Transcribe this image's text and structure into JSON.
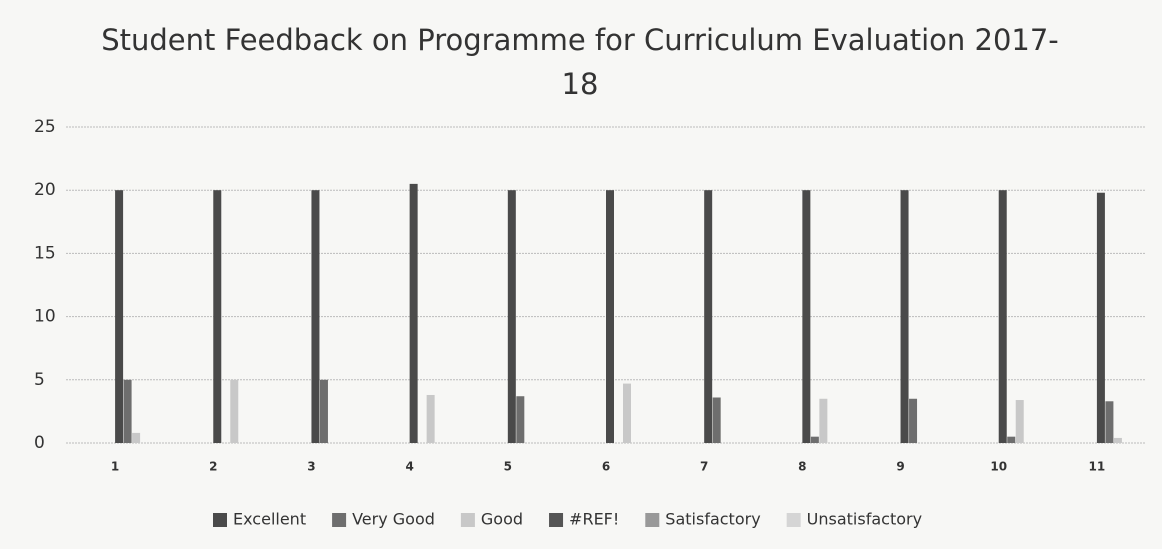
{
  "chart_data": {
    "type": "bar",
    "title": "Student Feedback on Programme for Curriculum Evaluation 2017-18",
    "categories": [
      "1",
      "2",
      "3",
      "4",
      "5",
      "6",
      "7",
      "8",
      "9",
      "10",
      "11"
    ],
    "series": [
      {
        "name": "Excellent",
        "color": "#4a4a4a",
        "values": [
          20,
          20,
          20,
          20.5,
          20,
          20,
          20,
          20,
          20,
          20,
          19.8
        ]
      },
      {
        "name": "Very Good",
        "color": "#6e6e6e",
        "values": [
          5,
          0,
          5,
          0,
          3.7,
          0,
          3.6,
          0.5,
          3.5,
          0.5,
          3.3
        ]
      },
      {
        "name": "Good",
        "color": "#c8c8c8",
        "values": [
          0.8,
          5,
          0,
          3.8,
          0,
          4.7,
          0,
          3.5,
          0,
          3.4,
          0.4
        ]
      },
      {
        "name": "#REF!",
        "color": "#555555",
        "values": [
          0,
          0,
          0,
          0,
          0,
          0,
          0,
          0,
          0,
          0,
          0
        ]
      },
      {
        "name": "Satisfactory",
        "color": "#999999",
        "values": [
          0,
          0,
          0,
          0,
          0,
          0,
          0,
          0,
          0,
          0,
          0
        ]
      },
      {
        "name": "Unsatisfactory",
        "color": "#d5d5d5",
        "values": [
          0,
          0,
          0,
          0,
          0,
          0,
          0,
          0,
          0,
          0,
          0
        ]
      }
    ],
    "ylim": [
      0,
      25
    ],
    "yticks": [
      0,
      5,
      10,
      15,
      20,
      25
    ],
    "grid": true,
    "legend": "bottom"
  }
}
